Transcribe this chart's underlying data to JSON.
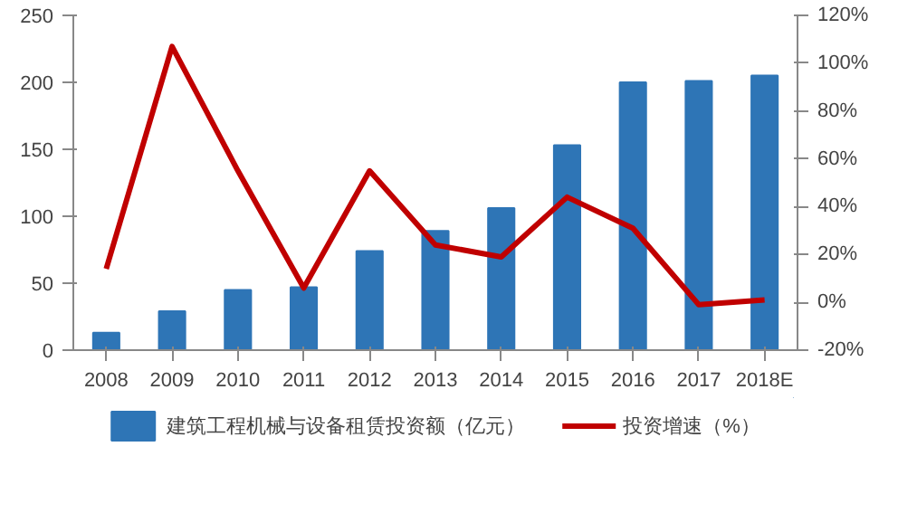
{
  "chart_data": {
    "type": "bar",
    "categories": [
      "2008",
      "2009",
      "2010",
      "2011",
      "2012",
      "2013",
      "2014",
      "2015",
      "2016",
      "2017",
      "2018E"
    ],
    "series": [
      {
        "name": "建筑工程机械与设备租赁投资额（亿元）",
        "color": "#2e75b6",
        "values": [
          13,
          29,
          45,
          47,
          74,
          89,
          106,
          153,
          200,
          201,
          205
        ]
      },
      {
        "name": "投资增速（%）",
        "color": "#c00000",
        "type": "line",
        "axis": "y2",
        "values": [
          14,
          107,
          55,
          6,
          55,
          24,
          19,
          44,
          31,
          -1,
          1
        ]
      }
    ],
    "ylim": [
      0,
      250
    ],
    "yticks": [
      0,
      50,
      100,
      150,
      200,
      250
    ],
    "y2lim": [
      -20,
      120
    ],
    "y2ticks": [
      {
        "value": -20,
        "label": "-20%"
      },
      {
        "value": 0,
        "label": "0%"
      },
      {
        "value": 20,
        "label": "20%"
      },
      {
        "value": 40,
        "label": "40%"
      },
      {
        "value": 60,
        "label": "60%"
      },
      {
        "value": 80,
        "label": "80%"
      },
      {
        "value": 100,
        "label": "100%"
      },
      {
        "value": 120,
        "label": "120%"
      }
    ],
    "grid": false,
    "legend": "bottom",
    "marker": "none",
    "line_style": "solid"
  }
}
